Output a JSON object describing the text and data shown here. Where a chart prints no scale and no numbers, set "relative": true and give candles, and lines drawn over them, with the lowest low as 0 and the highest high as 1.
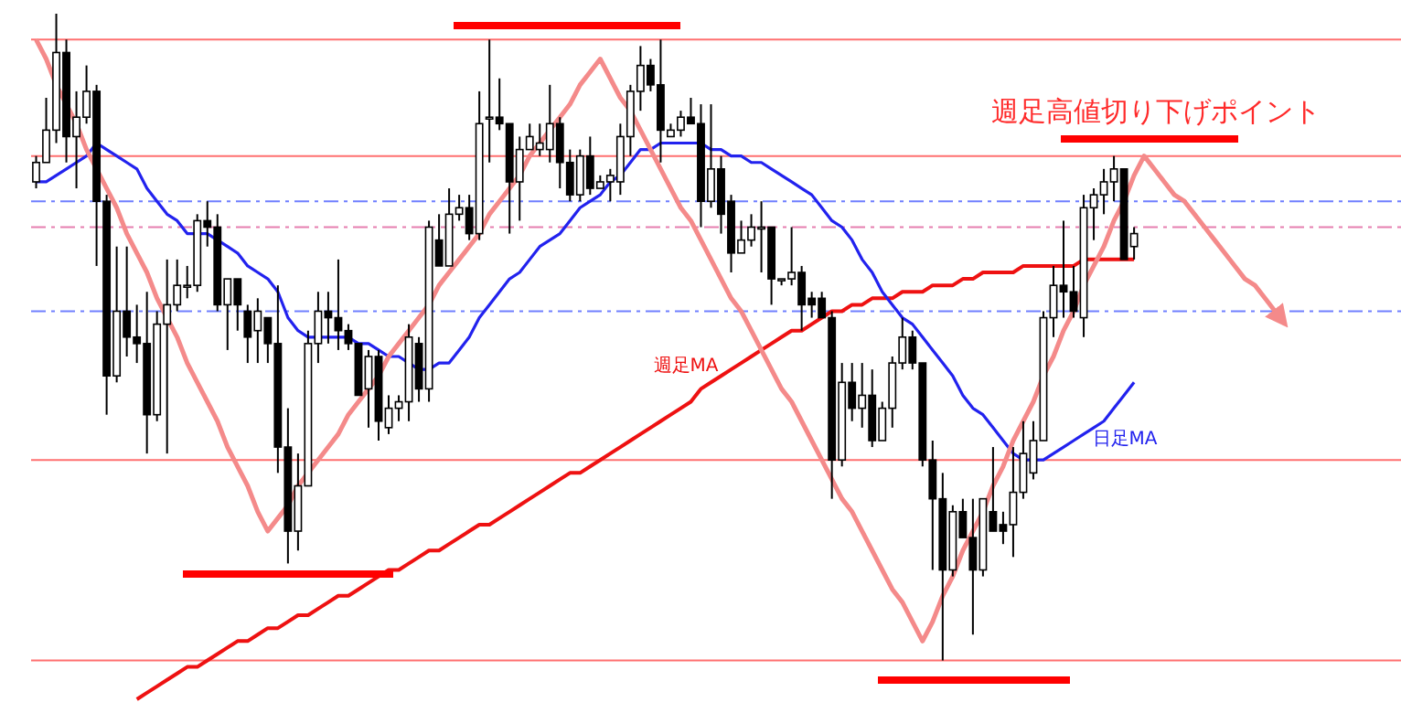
{
  "chart_data": {
    "type": "candlestick",
    "relative": true,
    "categories": [
      null,
      null,
      null,
      null,
      null,
      null,
      null,
      null,
      null,
      null,
      null,
      null,
      null,
      null,
      null,
      null,
      null,
      null,
      null,
      null,
      null,
      null,
      null,
      null,
      null,
      null,
      null,
      null,
      null,
      null,
      null,
      null,
      null,
      null,
      null,
      null,
      null,
      null,
      null,
      null,
      null,
      null,
      null,
      null,
      null,
      null,
      null,
      null,
      null,
      null,
      null,
      null,
      null,
      null,
      null,
      null,
      null,
      null,
      null,
      null,
      null,
      null,
      null,
      null,
      null,
      null,
      null,
      null,
      null,
      null,
      null,
      null,
      null,
      null,
      null,
      null,
      null,
      null,
      null,
      null,
      null,
      null,
      null,
      null,
      null,
      null,
      null,
      null,
      null,
      null,
      null,
      null,
      null,
      null,
      null,
      null,
      null,
      null,
      null,
      null,
      null,
      null,
      null,
      null,
      null,
      null,
      null,
      null,
      null,
      null,
      null,
      null,
      null,
      null,
      null,
      null,
      null,
      null,
      null,
      null,
      null,
      null,
      null,
      null,
      null,
      null,
      null,
      null,
      null,
      null,
      null,
      null,
      null,
      null,
      null,
      null
    ],
    "ohlc": [
      [
        0.74,
        0.78,
        0.73,
        0.77
      ],
      [
        0.77,
        0.87,
        0.77,
        0.82
      ],
      [
        0.82,
        1.0,
        0.8,
        0.94
      ],
      [
        0.94,
        0.96,
        0.77,
        0.81
      ],
      [
        0.81,
        0.88,
        0.73,
        0.84
      ],
      [
        0.84,
        0.92,
        0.83,
        0.88
      ],
      [
        0.88,
        0.89,
        0.61,
        0.71
      ],
      [
        0.71,
        0.72,
        0.38,
        0.44
      ],
      [
        0.44,
        0.64,
        0.43,
        0.54
      ],
      [
        0.54,
        0.64,
        0.47,
        0.5
      ],
      [
        0.5,
        0.55,
        0.46,
        0.49
      ],
      [
        0.49,
        0.57,
        0.32,
        0.38
      ],
      [
        0.38,
        0.54,
        0.37,
        0.52
      ],
      [
        0.52,
        0.62,
        0.32,
        0.55
      ],
      [
        0.55,
        0.62,
        0.54,
        0.58
      ],
      [
        0.58,
        0.61,
        0.56,
        0.58
      ],
      [
        0.58,
        0.69,
        0.57,
        0.68
      ],
      [
        0.68,
        0.71,
        0.64,
        0.67
      ],
      [
        0.67,
        0.69,
        0.54,
        0.55
      ],
      [
        0.55,
        0.59,
        0.48,
        0.59
      ],
      [
        0.59,
        0.59,
        0.51,
        0.55
      ],
      [
        0.54,
        0.55,
        0.46,
        0.5
      ],
      [
        0.51,
        0.56,
        0.46,
        0.54
      ],
      [
        0.53,
        0.53,
        0.46,
        0.49
      ],
      [
        0.49,
        0.58,
        0.29,
        0.33
      ],
      [
        0.33,
        0.39,
        0.15,
        0.2
      ],
      [
        0.2,
        0.32,
        0.17,
        0.27
      ],
      [
        0.27,
        0.51,
        0.27,
        0.49
      ],
      [
        0.49,
        0.57,
        0.46,
        0.54
      ],
      [
        0.54,
        0.57,
        0.49,
        0.53
      ],
      [
        0.53,
        0.62,
        0.48,
        0.51
      ],
      [
        0.51,
        0.52,
        0.48,
        0.49
      ],
      [
        0.49,
        0.49,
        0.41,
        0.41
      ],
      [
        0.42,
        0.48,
        0.36,
        0.47
      ],
      [
        0.47,
        0.48,
        0.34,
        0.37
      ],
      [
        0.36,
        0.41,
        0.35,
        0.39
      ],
      [
        0.39,
        0.41,
        0.37,
        0.4
      ],
      [
        0.4,
        0.52,
        0.37,
        0.5
      ],
      [
        0.49,
        0.5,
        0.4,
        0.42
      ],
      [
        0.42,
        0.68,
        0.4,
        0.67
      ],
      [
        0.65,
        0.69,
        0.61,
        0.61
      ],
      [
        0.61,
        0.73,
        0.61,
        0.69
      ],
      [
        0.69,
        0.72,
        0.68,
        0.7
      ],
      [
        0.7,
        0.72,
        0.65,
        0.66
      ],
      [
        0.66,
        0.88,
        0.65,
        0.83
      ],
      [
        0.84,
        0.96,
        0.77,
        0.84
      ],
      [
        0.84,
        0.9,
        0.82,
        0.83
      ],
      [
        0.83,
        0.83,
        0.66,
        0.74
      ],
      [
        0.74,
        0.81,
        0.68,
        0.79
      ],
      [
        0.79,
        0.83,
        0.79,
        0.81
      ],
      [
        0.79,
        0.83,
        0.78,
        0.8
      ],
      [
        0.79,
        0.89,
        0.77,
        0.83
      ],
      [
        0.83,
        0.84,
        0.73,
        0.77
      ],
      [
        0.77,
        0.79,
        0.71,
        0.72
      ],
      [
        0.72,
        0.79,
        0.71,
        0.78
      ],
      [
        0.78,
        0.81,
        0.72,
        0.73
      ],
      [
        0.73,
        0.75,
        0.73,
        0.74
      ],
      [
        0.74,
        0.76,
        0.71,
        0.75
      ],
      [
        0.74,
        0.83,
        0.72,
        0.81
      ],
      [
        0.81,
        0.89,
        0.78,
        0.88
      ],
      [
        0.88,
        0.95,
        0.85,
        0.92
      ],
      [
        0.92,
        0.93,
        0.88,
        0.89
      ],
      [
        0.89,
        0.96,
        0.77,
        0.82
      ],
      [
        0.81,
        0.83,
        0.81,
        0.82
      ],
      [
        0.82,
        0.85,
        0.81,
        0.84
      ],
      [
        0.84,
        0.87,
        0.83,
        0.83
      ],
      [
        0.83,
        0.86,
        0.67,
        0.71
      ],
      [
        0.71,
        0.86,
        0.7,
        0.76
      ],
      [
        0.76,
        0.78,
        0.66,
        0.69
      ],
      [
        0.71,
        0.72,
        0.6,
        0.63
      ],
      [
        0.63,
        0.68,
        0.63,
        0.65
      ],
      [
        0.65,
        0.69,
        0.64,
        0.67
      ],
      [
        0.67,
        0.71,
        0.6,
        0.67
      ],
      [
        0.67,
        0.67,
        0.55,
        0.59
      ],
      [
        0.59,
        0.59,
        0.58,
        0.59
      ],
      [
        0.59,
        0.67,
        0.58,
        0.6
      ],
      [
        0.6,
        0.61,
        0.51,
        0.55
      ],
      [
        0.56,
        0.57,
        0.53,
        0.55
      ],
      [
        0.56,
        0.57,
        0.53,
        0.53
      ],
      [
        0.53,
        0.54,
        0.25,
        0.31
      ],
      [
        0.31,
        0.46,
        0.3,
        0.43
      ],
      [
        0.43,
        0.46,
        0.37,
        0.39
      ],
      [
        0.39,
        0.46,
        0.36,
        0.41
      ],
      [
        0.41,
        0.45,
        0.33,
        0.34
      ],
      [
        0.34,
        0.4,
        0.34,
        0.39
      ],
      [
        0.39,
        0.47,
        0.36,
        0.46
      ],
      [
        0.46,
        0.53,
        0.45,
        0.5
      ],
      [
        0.5,
        0.51,
        0.45,
        0.46
      ],
      [
        0.46,
        0.46,
        0.3,
        0.31
      ],
      [
        0.31,
        0.34,
        0.14,
        0.25
      ],
      [
        0.25,
        0.29,
        0,
        0.14
      ],
      [
        0.14,
        0.24,
        0.13,
        0.23
      ],
      [
        0.23,
        0.25,
        0.19,
        0.19
      ],
      [
        0.19,
        0.25,
        0.04,
        0.14
      ],
      [
        0.14,
        0.25,
        0.13,
        0.25
      ],
      [
        0.23,
        0.33,
        0.2,
        0.2
      ],
      [
        0.21,
        0.23,
        0.18,
        0.2
      ],
      [
        0.21,
        0.33,
        0.16,
        0.26
      ],
      [
        0.26,
        0.37,
        0.25,
        0.32
      ],
      [
        0.29,
        0.37,
        0.28,
        0.34
      ],
      [
        0.34,
        0.54,
        0.34,
        0.53
      ],
      [
        0.53,
        0.61,
        0.5,
        0.58
      ],
      [
        0.58,
        0.68,
        0.53,
        0.57
      ],
      [
        0.57,
        0.61,
        0.53,
        0.54
      ],
      [
        0.53,
        0.72,
        0.5,
        0.7
      ],
      [
        0.7,
        0.73,
        0.65,
        0.72
      ],
      [
        0.72,
        0.76,
        0.69,
        0.74
      ],
      [
        0.74,
        0.78,
        0.71,
        0.76
      ],
      [
        0.76,
        0.76,
        0.62,
        0.62
      ],
      [
        0.64,
        0.67,
        0.62,
        0.66
      ],
      null,
      null,
      null,
      null,
      null,
      null,
      null,
      null,
      null,
      null,
      null,
      null,
      null,
      null,
      null,
      null,
      null,
      null,
      null,
      null,
      null,
      null,
      null,
      null,
      null,
      null
    ],
    "series": [
      {
        "type": "line",
        "name": "週足MA",
        "color": "#ee1111",
        "values": [
          null,
          null,
          null,
          null,
          null,
          null,
          null,
          null,
          null,
          null,
          -0.06,
          -0.05,
          -0.04,
          -0.03,
          -0.02,
          -0.01,
          -0.01,
          0.0,
          0.01,
          0.02,
          0.03,
          0.03,
          0.04,
          0.05,
          0.05,
          0.06,
          0.07,
          0.07,
          0.08,
          0.09,
          0.1,
          0.1,
          0.11,
          0.12,
          0.13,
          0.14,
          0.14,
          0.15,
          0.16,
          0.17,
          0.17,
          0.18,
          0.19,
          0.2,
          0.21,
          0.21,
          0.22,
          0.23,
          0.24,
          0.25,
          0.26,
          0.27,
          0.28,
          0.29,
          0.29,
          0.3,
          0.31,
          0.32,
          0.33,
          0.34,
          0.35,
          0.36,
          0.37,
          0.38,
          0.39,
          0.4,
          0.42,
          0.43,
          0.44,
          0.45,
          0.46,
          0.47,
          0.48,
          0.49,
          0.5,
          0.51,
          0.51,
          0.52,
          0.53,
          0.54,
          0.54,
          0.55,
          0.55,
          0.56,
          0.56,
          0.56,
          0.57,
          0.57,
          0.57,
          0.58,
          0.58,
          0.58,
          0.59,
          0.59,
          0.6,
          0.6,
          0.6,
          0.6,
          0.61,
          0.61,
          0.61,
          0.61,
          0.61,
          0.61,
          0.62,
          0.62,
          0.62,
          0.62,
          0.62,
          0.62,
          null,
          null,
          null,
          null,
          null,
          null,
          null,
          null,
          null,
          null,
          null,
          null,
          null,
          null,
          null,
          null,
          null,
          null,
          null,
          null,
          null,
          null,
          null,
          null,
          null,
          null
        ]
      },
      {
        "type": "line",
        "name": "日足MA",
        "color": "#2222ee",
        "values": [
          0.74,
          0.74,
          0.75,
          0.76,
          0.77,
          0.78,
          0.8,
          0.79,
          0.78,
          0.77,
          0.76,
          0.73,
          0.71,
          0.69,
          0.68,
          0.66,
          0.66,
          0.66,
          0.65,
          0.64,
          0.63,
          0.61,
          0.6,
          0.59,
          0.57,
          0.53,
          0.51,
          0.5,
          0.5,
          0.5,
          0.5,
          0.5,
          0.49,
          0.49,
          0.48,
          0.47,
          0.47,
          0.46,
          0.45,
          0.45,
          0.46,
          0.46,
          0.48,
          0.5,
          0.53,
          0.55,
          0.57,
          0.59,
          0.6,
          0.62,
          0.64,
          0.65,
          0.66,
          0.68,
          0.7,
          0.71,
          0.72,
          0.74,
          0.75,
          0.77,
          0.79,
          0.79,
          0.8,
          0.8,
          0.8,
          0.8,
          0.8,
          0.79,
          0.79,
          0.78,
          0.78,
          0.77,
          0.77,
          0.76,
          0.75,
          0.74,
          0.73,
          0.72,
          0.7,
          0.68,
          0.67,
          0.65,
          0.62,
          0.6,
          0.57,
          0.55,
          0.53,
          0.52,
          0.5,
          0.48,
          0.46,
          0.44,
          0.41,
          0.39,
          0.38,
          0.36,
          0.34,
          0.32,
          0.31,
          0.31,
          0.31,
          0.32,
          0.33,
          0.34,
          0.35,
          0.36,
          0.37,
          0.39,
          0.41,
          0.43,
          null,
          null,
          null,
          null,
          null,
          null,
          null,
          null,
          null,
          null,
          null,
          null,
          null,
          null,
          null,
          null,
          null,
          null,
          null,
          null,
          null,
          null,
          null,
          null,
          null,
          null
        ]
      },
      {
        "type": "line",
        "color": "#f48a8a",
        "values": [
          0.96,
          0.93,
          0.89,
          0.86,
          0.83,
          0.79,
          0.76,
          0.73,
          0.7,
          0.66,
          0.63,
          0.6,
          0.56,
          0.53,
          0.5,
          0.46,
          0.43,
          0.4,
          0.37,
          0.33,
          0.3,
          0.27,
          0.23,
          0.2,
          0.22,
          0.24,
          0.27,
          0.29,
          0.31,
          0.33,
          0.35,
          0.38,
          0.4,
          0.42,
          0.44,
          0.47,
          0.49,
          0.51,
          0.53,
          0.55,
          0.58,
          0.6,
          0.62,
          0.64,
          0.66,
          0.69,
          0.71,
          0.73,
          0.75,
          0.78,
          0.8,
          0.82,
          0.84,
          0.86,
          0.89,
          0.91,
          0.93,
          0.9,
          0.87,
          0.85,
          0.82,
          0.79,
          0.76,
          0.73,
          0.7,
          0.68,
          0.65,
          0.62,
          0.59,
          0.56,
          0.54,
          0.51,
          0.48,
          0.45,
          0.42,
          0.4,
          0.37,
          0.34,
          0.31,
          0.28,
          0.25,
          0.23,
          0.2,
          0.17,
          0.14,
          0.11,
          0.09,
          0.06,
          0.03,
          0.06,
          0.1,
          0.13,
          0.17,
          0.2,
          0.23,
          0.27,
          0.3,
          0.34,
          0.37,
          0.4,
          0.44,
          0.47,
          0.51,
          0.54,
          0.58,
          0.61,
          0.64,
          0.68,
          0.71,
          0.75,
          0.78,
          0.76,
          0.74,
          0.72,
          0.71,
          0.69,
          0.67,
          0.65,
          0.63,
          0.61,
          0.59,
          0.58,
          0.56,
          0.54,
          0.52,
          null,
          null,
          null,
          null,
          null,
          null,
          null,
          null,
          null,
          null,
          null
        ]
      }
    ],
    "ref_lines": [
      {
        "axis": "y",
        "value": 0.96,
        "color": "#ff7070"
      },
      {
        "axis": "y",
        "value": 0.78,
        "color": "#ff7070"
      },
      {
        "axis": "y",
        "value": 0.31,
        "color": "#ff7070"
      },
      {
        "axis": "y",
        "value": 0,
        "color": "#ff7070"
      },
      {
        "axis": "y",
        "value": 0.71,
        "color": "#7080ff",
        "line_style": "dashed"
      },
      {
        "axis": "y",
        "value": 0.67,
        "color": "#e67fb0",
        "line_style": "dashed"
      },
      {
        "axis": "y",
        "value": 0.54,
        "color": "#7080ff",
        "line_style": "dashed"
      }
    ],
    "annotations": [
      "週足高値切り下げポイント"
    ]
  }
}
